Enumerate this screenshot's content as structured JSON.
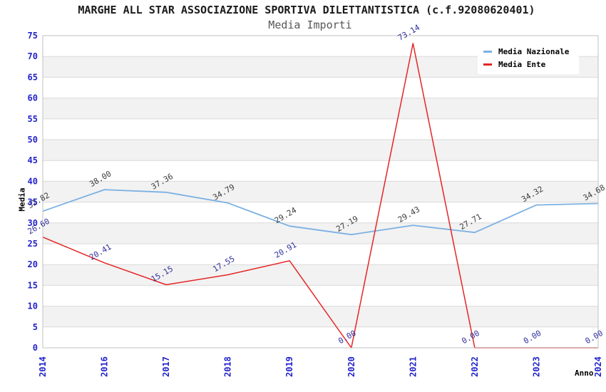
{
  "header": {
    "title": "MARGHE ALL STAR ASSOCIAZIONE SPORTIVA DILETTANTISTICA (c.f.92080620401)",
    "subtitle": "Media Importi"
  },
  "legend": {
    "position": "top-right",
    "items": [
      {
        "label": "Media Nazionale",
        "color": "#7bb0e3"
      },
      {
        "label": "Media Ente",
        "color": "#e52525"
      }
    ]
  },
  "chart_data": {
    "type": "line",
    "title": "MARGHE ALL STAR ASSOCIAZIONE SPORTIVA DILETTANTISTICA (c.f.92080620401)",
    "subtitle": "Media Importi",
    "xlabel": "Anno",
    "ylabel": "Media",
    "categories": [
      "2014",
      "2016",
      "2017",
      "2018",
      "2019",
      "2020",
      "2021",
      "2022",
      "2023",
      "2024"
    ],
    "series": [
      {
        "name": "Media Nazionale",
        "color": "#7bb0e3",
        "label_color": "#3d3d3d",
        "values": [
          32.82,
          38.0,
          37.36,
          34.79,
          29.24,
          27.19,
          29.43,
          27.71,
          34.32,
          34.68
        ]
      },
      {
        "name": "Media Ente",
        "color": "#e52525",
        "label_color": "#30309b",
        "values": [
          26.6,
          20.41,
          15.15,
          17.55,
          20.91,
          0.0,
          73.14,
          0.0,
          0.0,
          0.0
        ]
      }
    ],
    "ylim": [
      0,
      75
    ],
    "y_tick_step": 5,
    "grid": true,
    "legend_position": "top-right",
    "styles": {
      "tick_label_color": "#2323cc",
      "band_color": "#f2f2f2",
      "grid_color": "#d9d9d9",
      "border_color": "#c2c2c2",
      "point_label_rotation": -30
    }
  }
}
